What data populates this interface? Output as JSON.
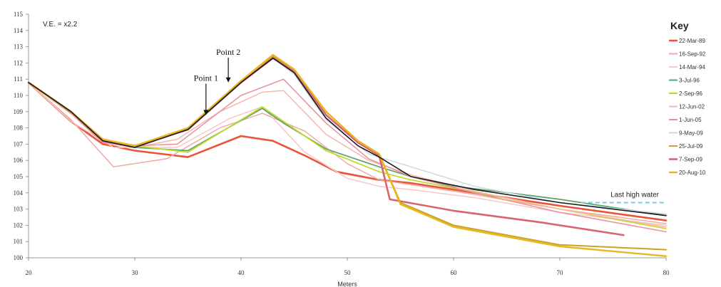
{
  "chart_data": {
    "type": "line",
    "ve_note": "V.E. = x2.2",
    "xlabel": "Meters",
    "ylabel": "",
    "xlim": [
      20,
      80
    ],
    "ylim": [
      100,
      115
    ],
    "x_ticks": [
      20,
      30,
      40,
      50,
      60,
      70,
      80
    ],
    "y_ticks": [
      100,
      101,
      102,
      103,
      104,
      105,
      106,
      107,
      108,
      109,
      110,
      111,
      112,
      113,
      114,
      115
    ],
    "grid": false,
    "legend": {
      "title": "Key",
      "placement": "right"
    },
    "annotations": [
      {
        "text": "Point 1",
        "x": 36.7,
        "y": 108.8,
        "label_y": 110.9
      },
      {
        "text": "Point 2",
        "x": 38.8,
        "y": 110.8,
        "label_y": 112.5
      }
    ],
    "last_high_water": {
      "label": "Last high water",
      "y": 103.4,
      "x_start": 72,
      "x_end": 80,
      "color": "#7ec8e8"
    },
    "series": [
      {
        "name": "22-Mar-89",
        "color": "#e8553a",
        "width": 2.6,
        "x": [
          20,
          24,
          27,
          30,
          35,
          40,
          43,
          46,
          49,
          53,
          56,
          62,
          70,
          80
        ],
        "y": [
          110.8,
          108.4,
          107.0,
          106.6,
          106.2,
          107.5,
          107.2,
          106.3,
          105.3,
          104.8,
          104.6,
          104.0,
          103.2,
          102.3
        ]
      },
      {
        "name": "16-Sep-92",
        "color": "#f2a9a3",
        "width": 1.5,
        "x": [
          20,
          24,
          28,
          33,
          38,
          42,
          46,
          50,
          53,
          56,
          62,
          70,
          80
        ],
        "y": [
          110.8,
          108.5,
          105.6,
          106.1,
          108.0,
          108.9,
          107.8,
          105.8,
          104.8,
          104.5,
          103.9,
          103.0,
          102.1
        ]
      },
      {
        "name": "14-Mar-94",
        "color": "#f7c9c4",
        "width": 1.5,
        "x": [
          20,
          24,
          28,
          34,
          39,
          42,
          46,
          50,
          53,
          56,
          62,
          70,
          80
        ],
        "y": [
          110.8,
          108.4,
          106.8,
          106.8,
          108.6,
          109.3,
          106.5,
          104.9,
          104.4,
          104.2,
          103.7,
          102.8,
          102.0
        ]
      },
      {
        "name": "3-Jul-96",
        "color": "#5fa46a",
        "width": 1.8,
        "x": [
          20,
          24,
          27,
          30,
          35,
          42,
          44,
          48,
          53,
          56,
          60,
          64,
          70,
          80
        ],
        "y": [
          110.8,
          108.9,
          107.1,
          106.8,
          106.6,
          109.2,
          108.3,
          106.7,
          105.6,
          105.0,
          104.4,
          104.1,
          103.6,
          102.6
        ]
      },
      {
        "name": "2-Sep-96",
        "color": "#c3d932",
        "width": 1.8,
        "x": [
          20,
          24,
          27,
          30,
          35,
          42,
          44,
          48,
          53,
          56,
          60,
          64,
          70,
          80
        ],
        "y": [
          110.8,
          108.9,
          107.2,
          106.9,
          106.5,
          109.3,
          108.4,
          106.6,
          105.3,
          104.8,
          104.3,
          103.8,
          103.0,
          101.8
        ]
      },
      {
        "name": "12-Jun-02",
        "color": "#f5b8b0",
        "width": 1.5,
        "x": [
          20,
          24,
          27,
          30,
          34,
          38,
          42,
          44,
          48,
          52,
          56,
          62,
          70,
          80
        ],
        "y": [
          110.8,
          108.9,
          107.1,
          106.8,
          107.3,
          109.0,
          110.2,
          110.3,
          107.6,
          106.0,
          105.1,
          104.1,
          103.0,
          101.9
        ]
      },
      {
        "name": "1-Jun-05",
        "color": "#e9909b",
        "width": 1.5,
        "x": [
          20,
          24,
          27,
          30,
          34,
          37,
          40,
          44,
          48,
          52,
          56,
          62,
          70,
          80
        ],
        "y": [
          110.8,
          108.9,
          107.1,
          106.9,
          107.0,
          108.5,
          110.0,
          111.0,
          108.3,
          106.1,
          105.0,
          104.0,
          102.8,
          101.6
        ]
      },
      {
        "name": "9-May-09",
        "color": "#cfd9e3",
        "width": 1.5,
        "x": [
          20,
          24,
          27,
          30,
          35,
          40,
          43,
          45,
          48,
          52,
          56,
          62,
          70,
          80
        ],
        "y": [
          110.8,
          109.0,
          107.2,
          106.9,
          107.9,
          110.8,
          112.3,
          111.3,
          108.5,
          106.4,
          105.6,
          104.4,
          103.4,
          102.7
        ]
      },
      {
        "name": "25-Jul-09",
        "color": "#c9a227",
        "width": 2.0,
        "x": [
          20,
          24,
          27,
          30,
          35,
          40,
          43,
          45,
          48,
          51,
          53,
          55,
          60,
          70,
          80
        ],
        "y": [
          110.8,
          109.0,
          107.3,
          106.9,
          107.9,
          110.9,
          112.4,
          111.6,
          109.0,
          107.2,
          106.4,
          103.4,
          102.0,
          100.8,
          100.5
        ]
      },
      {
        "name": "7-Sep-09",
        "color": "#d9646f",
        "width": 2.6,
        "x": [
          20,
          24,
          27,
          30,
          35,
          40,
          43,
          45,
          48,
          51,
          53,
          54,
          60,
          68,
          76
        ],
        "y": [
          110.8,
          109.0,
          107.2,
          106.9,
          107.9,
          110.8,
          112.3,
          111.5,
          108.8,
          107.1,
          106.3,
          103.6,
          102.9,
          102.2,
          101.4
        ]
      },
      {
        "name": "20-Aug-10",
        "color": "#e6b81f",
        "width": 2.4,
        "x": [
          20,
          24,
          27,
          30,
          35,
          40,
          43,
          45,
          48,
          51,
          53,
          55,
          60,
          70,
          80
        ],
        "y": [
          110.8,
          109.0,
          107.3,
          106.9,
          108.0,
          110.9,
          112.5,
          111.6,
          109.0,
          107.2,
          106.4,
          103.3,
          101.9,
          100.7,
          100.1
        ]
      },
      {
        "name": "",
        "color": "#1a1a1a",
        "width": 1.6,
        "x": [
          20,
          24,
          27,
          30,
          35,
          40,
          43,
          45,
          48,
          51,
          53,
          56,
          62,
          70,
          80
        ],
        "y": [
          110.8,
          109.0,
          107.2,
          106.8,
          107.9,
          110.8,
          112.3,
          111.4,
          108.6,
          106.9,
          106.2,
          105.0,
          104.2,
          103.4,
          102.6
        ]
      }
    ]
  }
}
